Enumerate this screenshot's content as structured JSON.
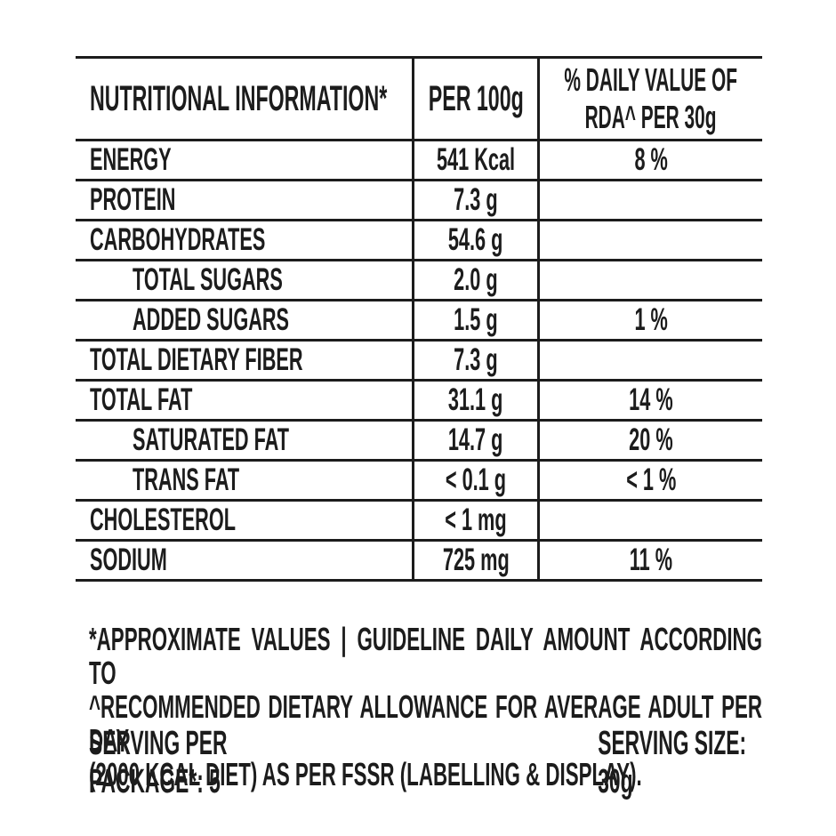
{
  "table": {
    "header": {
      "col1": "NUTRITIONAL INFORMATION*",
      "col2": "PER 100g",
      "col3_line1": "% DAILY VALUE OF",
      "col3_line2": "RDA^ PER 30g"
    },
    "rows": [
      {
        "label": "ENERGY",
        "per100g": "541 Kcal",
        "rda": "8 %",
        "indent": false
      },
      {
        "label": "PROTEIN",
        "per100g": "7.3 g",
        "rda": "",
        "indent": false
      },
      {
        "label": "CARBOHYDRATES",
        "per100g": "54.6 g",
        "rda": "",
        "indent": false
      },
      {
        "label": "TOTAL SUGARS",
        "per100g": "2.0 g",
        "rda": "",
        "indent": true
      },
      {
        "label": "ADDED SUGARS",
        "per100g": "1.5 g",
        "rda": "1 %",
        "indent": true
      },
      {
        "label": "TOTAL DIETARY FIBER",
        "per100g": "7.3 g",
        "rda": "",
        "indent": false
      },
      {
        "label": "TOTAL FAT",
        "per100g": "31.1 g",
        "rda": "14 %",
        "indent": false
      },
      {
        "label": "SATURATED FAT",
        "per100g": "14.7 g",
        "rda": "20 %",
        "indent": true
      },
      {
        "label": "TRANS FAT",
        "per100g": "< 0.1 g",
        "rda": "< 1 %",
        "indent": true
      },
      {
        "label": "CHOLESTEROL",
        "per100g": "< 1 mg",
        "rda": "",
        "indent": false
      },
      {
        "label": "SODIUM",
        "per100g": "725 mg",
        "rda": "11 %",
        "indent": false
      }
    ]
  },
  "footnote": {
    "line1": "*APPROXIMATE VALUES | GUIDELINE DAILY AMOUNT ACCORDING TO",
    "line2": "^RECOMMENDED DIETARY ALLOWANCE FOR AVERAGE ADULT PER DAY",
    "line3": "(2000 KCAL DIET) AS PER FSSR (LABELLING & DISPLAY)."
  },
  "serving": {
    "per_package": "SERVING PER PACKAGE*: 5",
    "size": "SERVING SIZE: 30g"
  },
  "colors": {
    "ink": "#1c1c1c",
    "background": "#ffffff"
  }
}
